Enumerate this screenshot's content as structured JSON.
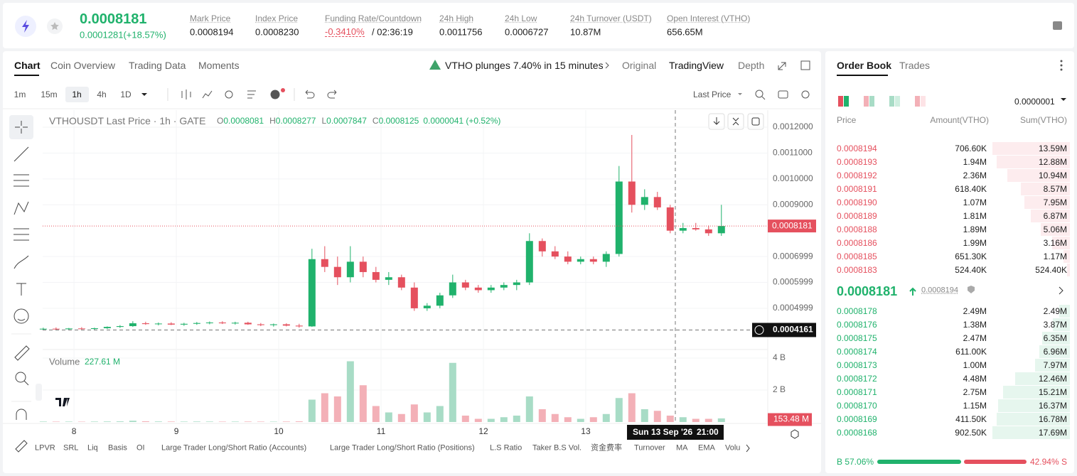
{
  "header": {
    "price": "0.0008181",
    "change": "0.0001281(+18.57%)",
    "stats": [
      {
        "label": "Mark Price",
        "value": "0.0008194"
      },
      {
        "label": "Index Price",
        "value": "0.0008230"
      },
      {
        "label": "Funding Rate/Countdown",
        "value": "-0.3410%",
        "countdown": "/ 02:36:19"
      },
      {
        "label": "24h High",
        "value": "0.0011756"
      },
      {
        "label": "24h Low",
        "value": "0.0006727"
      },
      {
        "label": "24h Turnover (USDT)",
        "value": "10.87M"
      },
      {
        "label": "Open Interest (VTHO)",
        "value": "656.65M"
      }
    ]
  },
  "chart_tabs": [
    "Chart",
    "Coin Overview",
    "Trading Data",
    "Moments"
  ],
  "news": "VTHO plunges 7.40% in 15 minutes",
  "views": [
    "Original",
    "TradingView",
    "Depth"
  ],
  "intervals": [
    "1m",
    "15m",
    "1h",
    "4h",
    "1D"
  ],
  "price_source": "Last Price",
  "legend": {
    "title": "VTHOUSDT Last Price · 1h · GATE",
    "items": [
      {
        "k": "O",
        "v": "0.0008081"
      },
      {
        "k": "H",
        "v": "0.0008277"
      },
      {
        "k": "L",
        "v": "0.0007847"
      },
      {
        "k": "C",
        "v": "0.0008125"
      }
    ],
    "change": "0.0000041 (+0.52%)"
  },
  "volume_label": "Volume",
  "volume_value": "227.61 M",
  "crosshair_date": "Sun 13 Sep '26",
  "crosshair_time": "21:00",
  "indicators": [
    "LPVR",
    "SRL",
    "Liq",
    "Basis",
    "OI",
    "Large Trader Long/Short Ratio (Accounts)",
    "Large Trader Long/Short Ratio (Positions)",
    "L.S Ratio",
    "Taker B.S Vol.",
    "资金费率",
    "Turnover",
    "MA",
    "EMA",
    "Volu"
  ],
  "chart_data": {
    "type": "candlestick",
    "x": [
      7.7,
      7.825,
      7.95,
      8.075,
      8.2,
      8.325,
      8.45,
      8.575,
      8.7,
      8.825,
      8.95,
      9.075,
      9.2,
      9.325,
      9.45,
      9.575,
      9.7,
      9.825,
      9.95,
      10.075,
      10.2,
      10.325,
      10.45,
      10.575,
      10.7,
      10.825,
      10.95,
      11.075,
      11.2,
      11.325,
      11.45,
      11.575,
      11.7,
      11.825,
      11.95,
      12.075,
      12.2,
      12.325,
      12.45,
      12.575,
      12.7,
      12.825,
      12.95,
      13.075,
      13.2,
      13.325,
      13.45,
      13.575,
      13.7,
      13.825,
      13.95,
      14.075,
      14.2,
      14.325
    ],
    "open": [
      0.00042,
      0.000421,
      0.000419,
      0.000422,
      0.00042,
      0.000423,
      0.000428,
      0.000431,
      0.000442,
      0.000439,
      0.000441,
      0.000437,
      0.00044,
      0.000443,
      0.000445,
      0.000442,
      0.000444,
      0.000438,
      0.000435,
      0.000438,
      0.000433,
      0.00043,
      0.00069,
      0.00066,
      0.00062,
      0.00068,
      0.00064,
      0.00061,
      0.00062,
      0.00058,
      0.0005,
      0.00051,
      0.00055,
      0.0006,
      0.00058,
      0.00057,
      0.00058,
      0.00059,
      0.0006,
      0.00076,
      0.00072,
      0.0007,
      0.00068,
      0.00069,
      0.00068,
      0.00071,
      0.00099,
      0.0009,
      0.00093,
      0.00089,
      0.0008,
      0.00081,
      0.000805,
      0.00079
    ],
    "high": [
      0.000425,
      0.000426,
      0.000424,
      0.000427,
      0.000425,
      0.00043,
      0.000435,
      0.00045,
      0.000448,
      0.000445,
      0.000446,
      0.000444,
      0.000447,
      0.000449,
      0.00045,
      0.000448,
      0.000448,
      0.000443,
      0.000441,
      0.000442,
      0.00044,
      0.00073,
      0.00074,
      0.0007,
      0.00074,
      0.0007,
      0.00066,
      0.00064,
      0.00063,
      0.0006,
      0.00052,
      0.00056,
      0.00063,
      0.00061,
      0.00059,
      0.00059,
      0.0006,
      0.00061,
      0.00079,
      0.00077,
      0.00074,
      0.00072,
      0.0007,
      0.0007,
      0.00072,
      0.00105,
      0.00117,
      0.00096,
      0.00095,
      0.0009,
      0.00083,
      0.00083,
      0.00082,
      0.0009
    ],
    "low": [
      0.000416,
      0.000417,
      0.000415,
      0.000418,
      0.000416,
      0.00042,
      0.000424,
      0.000428,
      0.000436,
      0.000434,
      0.000435,
      0.000432,
      0.000436,
      0.000438,
      0.000439,
      0.000437,
      0.000436,
      0.000431,
      0.000429,
      0.00043,
      0.000425,
      0.000428,
      0.00064,
      0.00059,
      0.0006,
      0.00062,
      0.0006,
      0.00059,
      0.00057,
      0.00049,
      0.00049,
      0.0005,
      0.00054,
      0.00057,
      0.00056,
      0.00056,
      0.00057,
      0.00057,
      0.00059,
      0.0007,
      0.00069,
      0.00067,
      0.00067,
      0.00067,
      0.00066,
      0.0007,
      0.00087,
      0.00088,
      0.00088,
      0.00079,
      0.00079,
      0.0008,
      0.00078,
      0.00078
    ],
    "close": [
      0.000421,
      0.000419,
      0.000422,
      0.00042,
      0.000423,
      0.000428,
      0.000431,
      0.000442,
      0.000439,
      0.000441,
      0.000437,
      0.00044,
      0.000443,
      0.000445,
      0.000442,
      0.000444,
      0.000438,
      0.000435,
      0.000438,
      0.000433,
      0.00043,
      0.00069,
      0.00066,
      0.00062,
      0.00068,
      0.00064,
      0.00061,
      0.00062,
      0.00058,
      0.0005,
      0.00051,
      0.00055,
      0.0006,
      0.00058,
      0.00057,
      0.00058,
      0.00059,
      0.0006,
      0.00076,
      0.00072,
      0.0007,
      0.00068,
      0.00069,
      0.00068,
      0.00071,
      0.00099,
      0.0009,
      0.00093,
      0.00089,
      0.0008,
      0.00081,
      0.000805,
      0.00079,
      0.0008181
    ],
    "xlim": [
      7.694,
      14.778
    ],
    "xticks": [
      8,
      9,
      10,
      11,
      12,
      13
    ],
    "ylim": [
      0.000346,
      0.001266
    ],
    "yticks": [
      {
        "value": 0.0012,
        "label": "0.0012000"
      },
      {
        "value": 0.0011,
        "label": "0.0011000"
      },
      {
        "value": 0.001,
        "label": "0.0010000"
      },
      {
        "value": 0.0009,
        "label": "0.0009000"
      },
      0.0006999,
      0.0005999,
      0.0004999
    ],
    "last_price": 0.0008181,
    "crosshair_price": 0.0004161,
    "crosshair_x": 13.875,
    "volume": {
      "values": [
        30000000,
        25000000,
        28000000,
        22000000,
        30000000,
        35000000,
        40000000,
        80000000,
        45000000,
        35000000,
        30000000,
        28000000,
        32000000,
        30000000,
        25000000,
        28000000,
        30000000,
        26000000,
        24000000,
        30000000,
        40000000,
        1400000000,
        1800000000,
        1600000000,
        3800000000,
        2300000000,
        1000000000,
        600000000,
        500000000,
        1100000000,
        600000000,
        1000000000,
        3700000000,
        400000000,
        200000000,
        200000000,
        300000000,
        400000000,
        1600000000,
        800000000,
        500000000,
        300000000,
        200000000,
        300000000,
        500000000,
        1500000000,
        1800000000,
        800000000,
        700000000,
        400000000,
        300000000,
        200000000,
        200000000,
        227610000
      ],
      "ylim": [
        0,
        4400000000
      ],
      "yticks": [
        {
          "value": 4000000000,
          "label": "4 B"
        },
        {
          "value": 2000000000,
          "label": "2 B"
        }
      ],
      "crosshair": {
        "value": 153480000,
        "label": "153.48 M"
      }
    }
  },
  "order_book": {
    "tabs": [
      "Order Book",
      "Trades"
    ],
    "precision": "0.0000001",
    "headers": [
      "Price",
      "Amount(VTHO)",
      "Sum(VTHO)"
    ],
    "asks": [
      [
        "0.0008194",
        "706.60K",
        "13.59M"
      ],
      [
        "0.0008193",
        "1.94M",
        "12.88M"
      ],
      [
        "0.0008192",
        "2.36M",
        "10.94M"
      ],
      [
        "0.0008191",
        "618.40K",
        "8.57M"
      ],
      [
        "0.0008190",
        "1.07M",
        "7.95M"
      ],
      [
        "0.0008189",
        "1.81M",
        "6.87M"
      ],
      [
        "0.0008188",
        "1.89M",
        "5.06M"
      ],
      [
        "0.0008186",
        "1.99M",
        "3.16M"
      ],
      [
        "0.0008185",
        "651.30K",
        "1.17M"
      ],
      [
        "0.0008183",
        "524.40K",
        "524.40K"
      ]
    ],
    "mid_price": "0.0008181",
    "mark_price": "0.0008194",
    "bids": [
      [
        "0.0008178",
        "2.49M",
        "2.49M"
      ],
      [
        "0.0008176",
        "1.38M",
        "3.87M"
      ],
      [
        "0.0008175",
        "2.47M",
        "6.35M"
      ],
      [
        "0.0008174",
        "611.00K",
        "6.96M"
      ],
      [
        "0.0008173",
        "1.00M",
        "7.97M"
      ],
      [
        "0.0008172",
        "4.48M",
        "12.46M"
      ],
      [
        "0.0008171",
        "2.75M",
        "15.21M"
      ],
      [
        "0.0008170",
        "1.15M",
        "16.37M"
      ],
      [
        "0.0008169",
        "411.50K",
        "16.78M"
      ],
      [
        "0.0008168",
        "902.50K",
        "17.69M"
      ]
    ],
    "buy_ratio": "B 57.06%",
    "sell_ratio": "42.94% S"
  }
}
